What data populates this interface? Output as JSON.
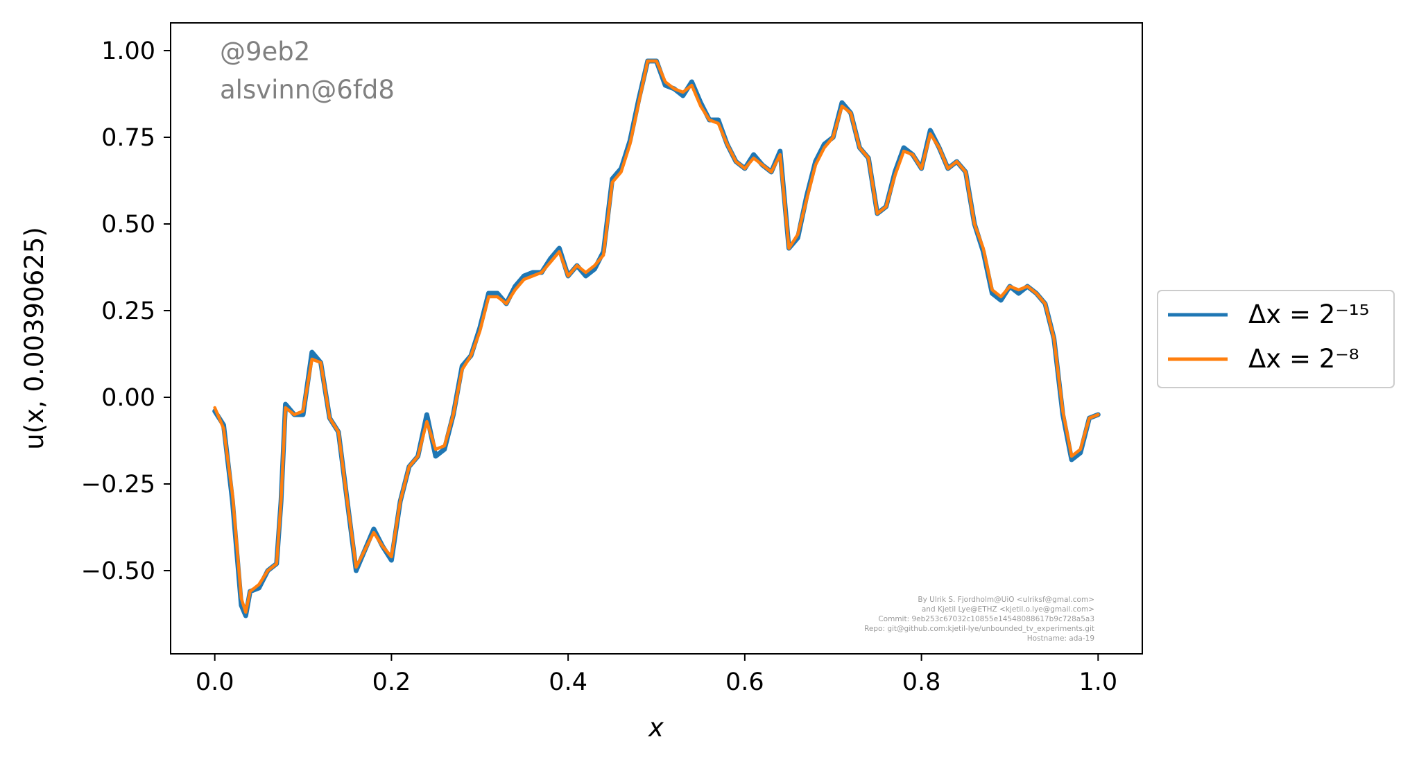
{
  "chart_data": {
    "type": "line",
    "title": "",
    "xlabel": "x",
    "ylabel": "u(x, 0.00390625)",
    "xlim": [
      -0.05,
      1.05
    ],
    "ylim": [
      -0.74,
      1.08
    ],
    "xticks": [
      0.0,
      0.2,
      0.4,
      0.6,
      0.8,
      1.0
    ],
    "xtick_labels": [
      "0.0",
      "0.2",
      "0.4",
      "0.6",
      "0.8",
      "1.0"
    ],
    "yticks": [
      1.0,
      0.75,
      0.5,
      0.25,
      0.0,
      -0.25,
      -0.5
    ],
    "ytick_labels": [
      "1.00",
      "0.75",
      "0.50",
      "0.25",
      "0.00",
      "−0.25",
      "−0.50"
    ],
    "grid": false,
    "legend_position": "outside-right",
    "series": [
      {
        "name": "Δx = 2⁻¹⁵",
        "color": "#1f77b4",
        "x": [
          0.0,
          0.01,
          0.02,
          0.03,
          0.035,
          0.04,
          0.05,
          0.06,
          0.07,
          0.075,
          0.08,
          0.09,
          0.1,
          0.11,
          0.12,
          0.13,
          0.14,
          0.15,
          0.16,
          0.17,
          0.18,
          0.19,
          0.2,
          0.21,
          0.22,
          0.23,
          0.24,
          0.25,
          0.26,
          0.27,
          0.28,
          0.29,
          0.3,
          0.31,
          0.32,
          0.33,
          0.34,
          0.35,
          0.36,
          0.37,
          0.38,
          0.39,
          0.4,
          0.41,
          0.42,
          0.43,
          0.44,
          0.45,
          0.46,
          0.47,
          0.48,
          0.49,
          0.5,
          0.51,
          0.52,
          0.53,
          0.54,
          0.55,
          0.56,
          0.57,
          0.58,
          0.59,
          0.6,
          0.61,
          0.62,
          0.63,
          0.64,
          0.65,
          0.66,
          0.67,
          0.68,
          0.69,
          0.7,
          0.71,
          0.72,
          0.73,
          0.74,
          0.75,
          0.76,
          0.77,
          0.78,
          0.79,
          0.8,
          0.81,
          0.82,
          0.83,
          0.84,
          0.85,
          0.86,
          0.87,
          0.88,
          0.89,
          0.9,
          0.91,
          0.92,
          0.93,
          0.94,
          0.95,
          0.96,
          0.97,
          0.98,
          0.99,
          1.0
        ],
        "y": [
          -0.04,
          -0.08,
          -0.3,
          -0.6,
          -0.63,
          -0.56,
          -0.55,
          -0.5,
          -0.48,
          -0.3,
          -0.02,
          -0.05,
          -0.05,
          0.13,
          0.1,
          -0.06,
          -0.1,
          -0.3,
          -0.5,
          -0.44,
          -0.38,
          -0.43,
          -0.47,
          -0.3,
          -0.2,
          -0.17,
          -0.05,
          -0.17,
          -0.15,
          -0.05,
          0.09,
          0.12,
          0.2,
          0.3,
          0.3,
          0.27,
          0.32,
          0.35,
          0.36,
          0.36,
          0.4,
          0.43,
          0.35,
          0.38,
          0.35,
          0.37,
          0.42,
          0.63,
          0.66,
          0.74,
          0.86,
          0.97,
          0.97,
          0.9,
          0.89,
          0.87,
          0.91,
          0.85,
          0.8,
          0.8,
          0.73,
          0.68,
          0.66,
          0.7,
          0.67,
          0.65,
          0.71,
          0.43,
          0.46,
          0.58,
          0.68,
          0.73,
          0.75,
          0.85,
          0.82,
          0.72,
          0.69,
          0.53,
          0.55,
          0.65,
          0.72,
          0.7,
          0.66,
          0.77,
          0.72,
          0.66,
          0.68,
          0.65,
          0.5,
          0.42,
          0.3,
          0.28,
          0.32,
          0.3,
          0.32,
          0.3,
          0.27,
          0.17,
          -0.05,
          -0.18,
          -0.16,
          -0.06,
          -0.05
        ]
      },
      {
        "name": "Δx = 2⁻⁸",
        "color": "#ff7f0e",
        "x": [
          0.0,
          0.01,
          0.02,
          0.03,
          0.035,
          0.04,
          0.05,
          0.06,
          0.07,
          0.075,
          0.08,
          0.09,
          0.1,
          0.11,
          0.12,
          0.13,
          0.14,
          0.15,
          0.16,
          0.17,
          0.18,
          0.19,
          0.2,
          0.21,
          0.22,
          0.23,
          0.24,
          0.25,
          0.26,
          0.27,
          0.28,
          0.29,
          0.3,
          0.31,
          0.32,
          0.33,
          0.34,
          0.35,
          0.36,
          0.37,
          0.38,
          0.39,
          0.4,
          0.41,
          0.42,
          0.43,
          0.44,
          0.45,
          0.46,
          0.47,
          0.48,
          0.49,
          0.5,
          0.51,
          0.52,
          0.53,
          0.54,
          0.55,
          0.56,
          0.57,
          0.58,
          0.59,
          0.6,
          0.61,
          0.62,
          0.63,
          0.64,
          0.65,
          0.66,
          0.67,
          0.68,
          0.69,
          0.7,
          0.71,
          0.72,
          0.73,
          0.74,
          0.75,
          0.76,
          0.77,
          0.78,
          0.79,
          0.8,
          0.81,
          0.82,
          0.83,
          0.84,
          0.85,
          0.86,
          0.87,
          0.88,
          0.89,
          0.9,
          0.91,
          0.92,
          0.93,
          0.94,
          0.95,
          0.96,
          0.97,
          0.98,
          0.99,
          1.0
        ],
        "y": [
          -0.03,
          -0.09,
          -0.28,
          -0.58,
          -0.62,
          -0.56,
          -0.54,
          -0.5,
          -0.48,
          -0.3,
          -0.03,
          -0.05,
          -0.04,
          0.11,
          0.1,
          -0.06,
          -0.1,
          -0.3,
          -0.49,
          -0.44,
          -0.39,
          -0.43,
          -0.46,
          -0.3,
          -0.2,
          -0.17,
          -0.07,
          -0.15,
          -0.14,
          -0.05,
          0.08,
          0.12,
          0.19,
          0.29,
          0.29,
          0.27,
          0.31,
          0.34,
          0.35,
          0.36,
          0.39,
          0.42,
          0.35,
          0.38,
          0.36,
          0.38,
          0.41,
          0.62,
          0.65,
          0.73,
          0.85,
          0.97,
          0.97,
          0.91,
          0.89,
          0.88,
          0.9,
          0.84,
          0.8,
          0.79,
          0.73,
          0.68,
          0.66,
          0.69,
          0.67,
          0.65,
          0.7,
          0.43,
          0.47,
          0.57,
          0.67,
          0.72,
          0.75,
          0.84,
          0.82,
          0.72,
          0.69,
          0.53,
          0.55,
          0.64,
          0.71,
          0.7,
          0.66,
          0.76,
          0.72,
          0.66,
          0.68,
          0.65,
          0.5,
          0.43,
          0.31,
          0.29,
          0.32,
          0.31,
          0.32,
          0.3,
          0.27,
          0.17,
          -0.04,
          -0.17,
          -0.15,
          -0.06,
          -0.05
        ]
      }
    ],
    "annotations": {
      "stamp_line1": "@9eb2",
      "stamp_line2": "alsvinn@6fd8",
      "credit_lines": [
        "By Ulrik S. Fjordholm@UiO <ulriksf@gmal.com>",
        "and Kjetil Lye@ETHZ <kjetil.o.lye@gmail.com>",
        "Commit: 9eb253c67032c10855e14548088617b9c728a5a3",
        "Repo: git@github.com:kjetil-lye/unbounded_tv_experiments.git",
        "Hostname: ada-19"
      ]
    }
  }
}
